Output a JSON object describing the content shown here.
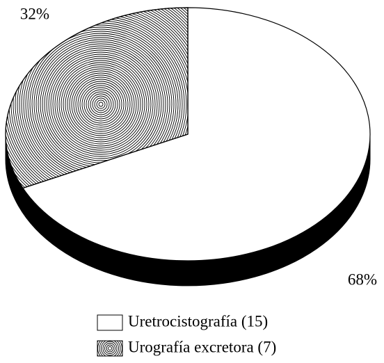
{
  "chart_data": {
    "type": "pie",
    "categories": [
      "Uretrocistografía (15)",
      "Urografía excretora (7)"
    ],
    "values": [
      68,
      32
    ],
    "value_labels": [
      "68%",
      "32%"
    ],
    "colors": [
      "#ffffff",
      "#000000"
    ],
    "legend": "bottom"
  }
}
